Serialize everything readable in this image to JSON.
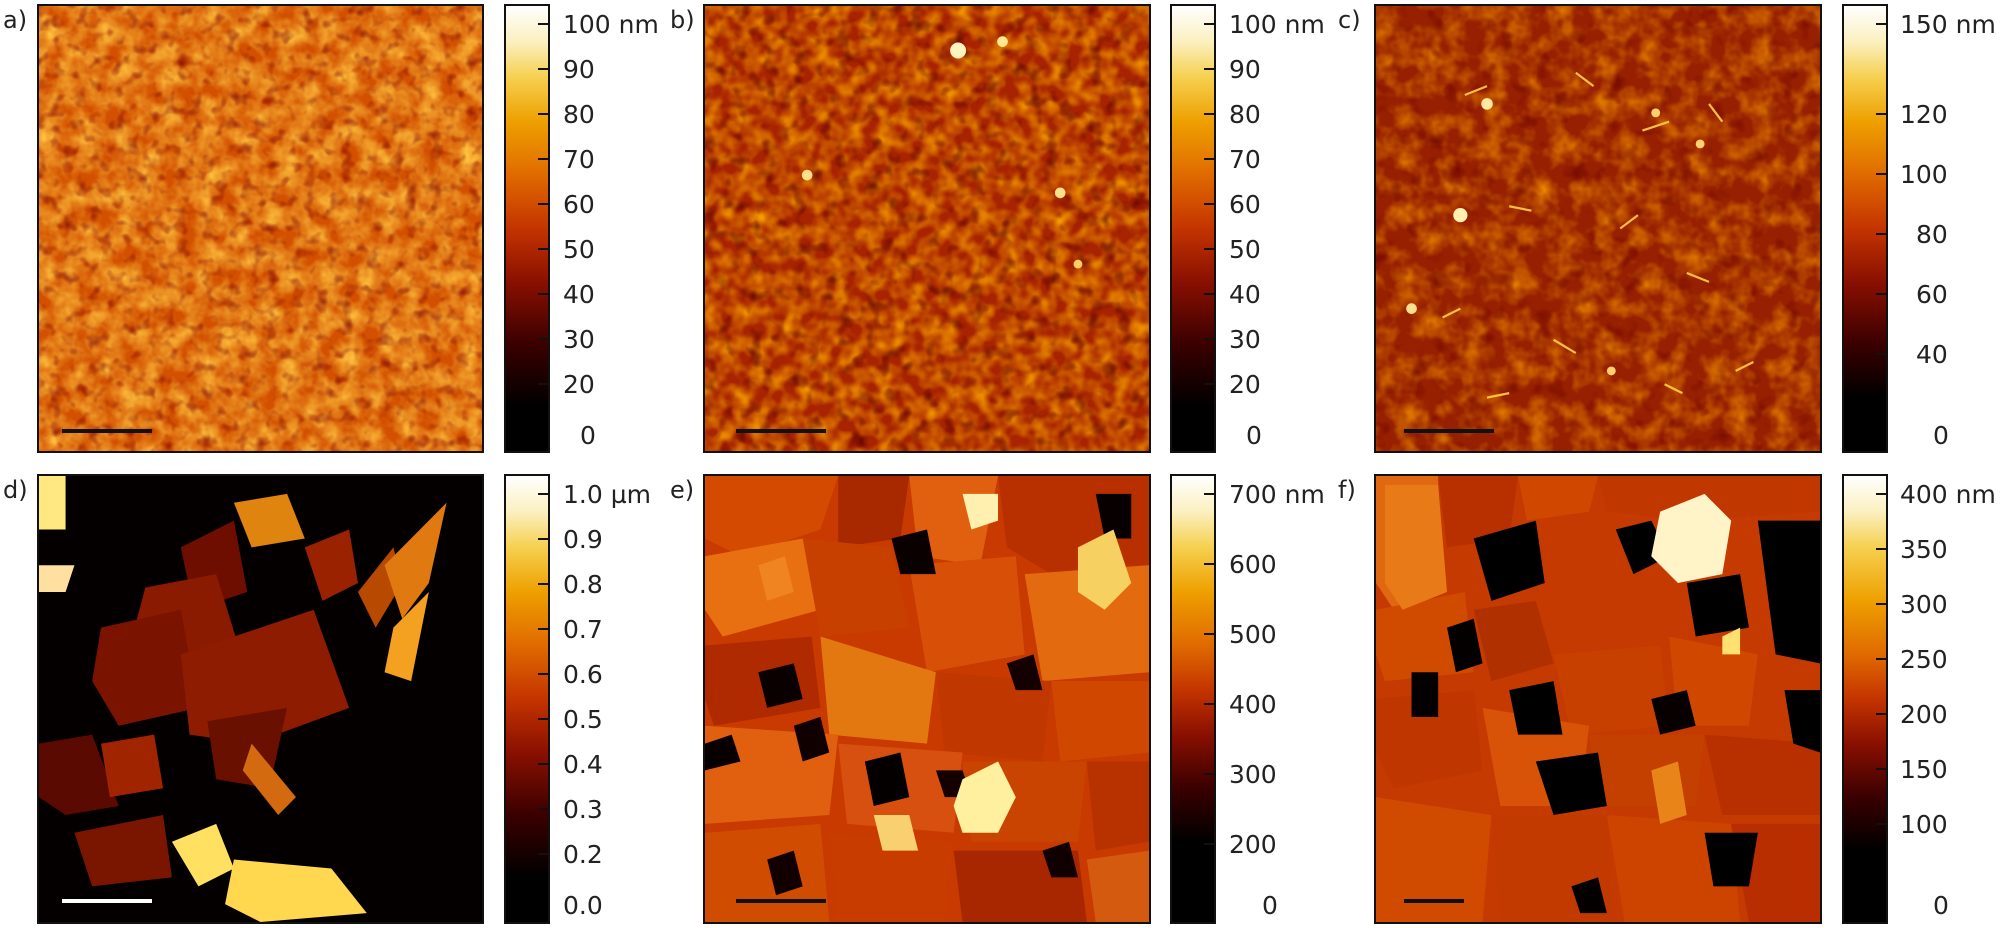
{
  "figure": {
    "panels": [
      {
        "id": "a",
        "label": "a)",
        "colorbar": {
          "ticks": [
            "100 nm",
            "90",
            "80",
            "70",
            "60",
            "50",
            "40",
            "30",
            "20",
            "0"
          ]
        },
        "scale_bar_color": "#111111"
      },
      {
        "id": "b",
        "label": "b)",
        "colorbar": {
          "ticks": [
            "100 nm",
            "90",
            "80",
            "70",
            "60",
            "50",
            "40",
            "30",
            "20",
            "0"
          ]
        },
        "scale_bar_color": "#111111"
      },
      {
        "id": "c",
        "label": "c)",
        "colorbar": {
          "ticks": [
            "150 nm",
            "120",
            "100",
            "80",
            "60",
            "40",
            "0"
          ]
        },
        "scale_bar_color": "#111111"
      },
      {
        "id": "d",
        "label": "d)",
        "colorbar": {
          "ticks": [
            "1.0 µm",
            "0.9",
            "0.8",
            "0.7",
            "0.6",
            "0.5",
            "0.4",
            "0.3",
            "0.2",
            "0.0"
          ]
        },
        "scale_bar_color": "#ffffff"
      },
      {
        "id": "e",
        "label": "e)",
        "colorbar": {
          "ticks": [
            "700 nm",
            "600",
            "500",
            "400",
            "300",
            "200",
            "0"
          ]
        },
        "scale_bar_color": "#111111"
      },
      {
        "id": "f",
        "label": "f)",
        "colorbar": {
          "ticks": [
            "400 nm",
            "350",
            "300",
            "250",
            "200",
            "150",
            "100",
            "0"
          ]
        },
        "scale_bar_color": "#111111"
      }
    ],
    "colormap": [
      "#000000",
      "#3a0000",
      "#7a0a00",
      "#b52800",
      "#d85a00",
      "#ec9200",
      "#f4c430",
      "#f8e58a",
      "#ffffff"
    ]
  }
}
